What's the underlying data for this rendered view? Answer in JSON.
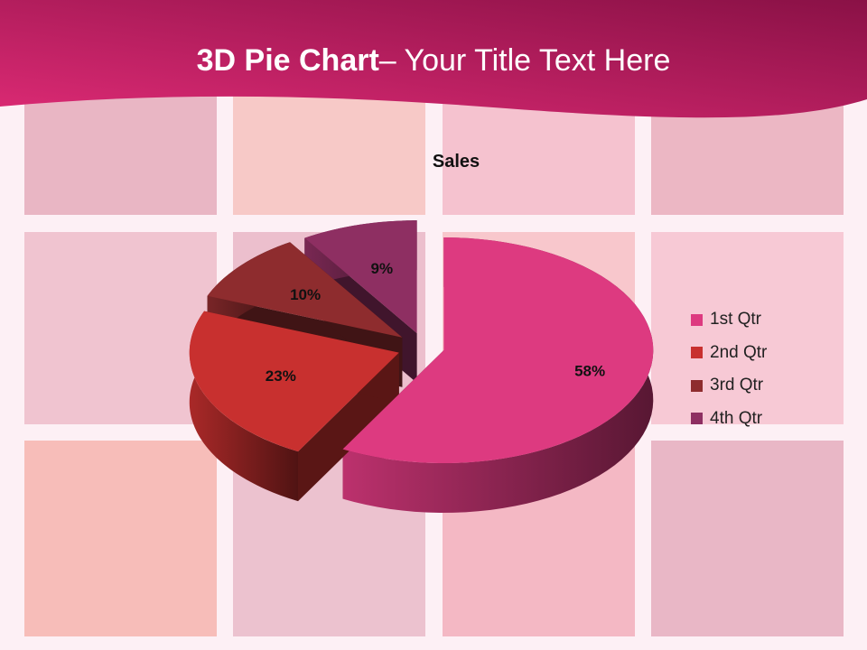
{
  "slide": {
    "title_bold": "3D Pie Chart",
    "title_rest": "– Your Title Text Here"
  },
  "colors": {
    "header_dark": "#8e1248",
    "header_light": "#d6246c",
    "background": "#fdf0f5"
  },
  "chart_data": {
    "type": "pie",
    "three_d": true,
    "exploded": true,
    "title": "Sales",
    "categories": [
      "1st Qtr",
      "2nd Qtr",
      "3rd Qtr",
      "4th Qtr"
    ],
    "values": [
      58,
      23,
      10,
      9
    ],
    "labels": [
      "58%",
      "23%",
      "10%",
      "9%"
    ],
    "colors": [
      "#dd3a80",
      "#c8302f",
      "#8e2c2e",
      "#8e2f62"
    ],
    "legend_position": "right"
  }
}
